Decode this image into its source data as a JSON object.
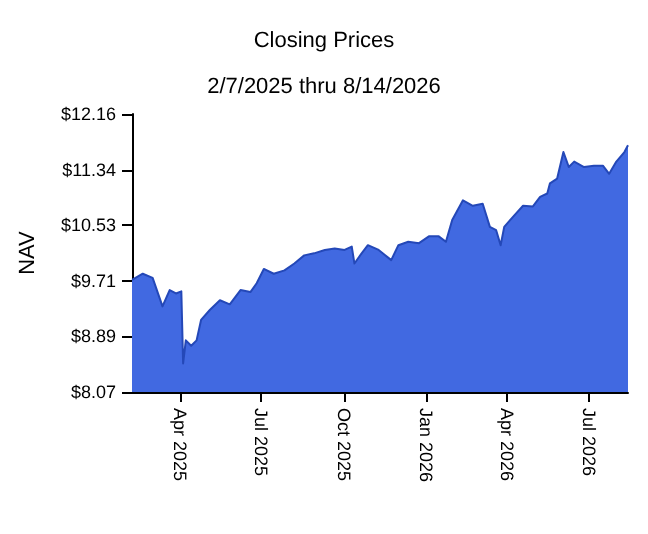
{
  "chart_data": {
    "type": "area",
    "title": "Closing Prices",
    "subtitle": "2/7/2025 thru 8/14/2026",
    "ylabel": "NAV",
    "x": [
      "2025-02-07",
      "2025-02-19",
      "2025-03-02",
      "2025-03-13",
      "2025-03-21",
      "2025-03-28",
      "2025-04-03",
      "2025-04-05",
      "2025-04-08",
      "2025-04-14",
      "2025-04-20",
      "2025-04-25",
      "2025-05-05",
      "2025-05-16",
      "2025-05-27",
      "2025-06-08",
      "2025-06-19",
      "2025-06-26",
      "2025-07-04",
      "2025-07-15",
      "2025-07-27",
      "2025-08-07",
      "2025-08-18",
      "2025-08-29",
      "2025-09-10",
      "2025-09-21",
      "2025-10-02",
      "2025-10-10",
      "2025-10-13",
      "2025-10-21",
      "2025-10-28",
      "2025-11-09",
      "2025-11-23",
      "2025-12-01",
      "2025-12-12",
      "2025-12-24",
      "2026-01-04",
      "2026-01-15",
      "2026-01-23",
      "2026-01-30",
      "2026-02-11",
      "2026-02-22",
      "2026-03-05",
      "2026-03-13",
      "2026-03-20",
      "2026-03-25",
      "2026-03-29",
      "2026-04-08",
      "2026-04-19",
      "2026-04-30",
      "2026-05-08",
      "2026-05-16",
      "2026-05-19",
      "2026-05-27",
      "2026-06-03",
      "2026-06-09",
      "2026-06-15",
      "2026-06-26",
      "2026-07-07",
      "2026-07-17",
      "2026-07-24",
      "2026-08-01",
      "2026-08-10",
      "2026-08-14"
    ],
    "series": [
      {
        "color": "#4169e1",
        "values": [
          9.72,
          9.81,
          9.75,
          9.33,
          9.57,
          9.52,
          9.55,
          8.49,
          8.83,
          8.75,
          8.83,
          9.13,
          9.28,
          9.42,
          9.36,
          9.57,
          9.54,
          9.67,
          9.88,
          9.81,
          9.86,
          9.96,
          10.08,
          10.11,
          10.16,
          10.18,
          10.16,
          10.21,
          9.96,
          10.11,
          10.23,
          10.16,
          10.01,
          10.23,
          10.28,
          10.26,
          10.36,
          10.36,
          10.28,
          10.6,
          10.89,
          10.81,
          10.84,
          10.5,
          10.45,
          10.23,
          10.5,
          10.65,
          10.81,
          10.8,
          10.94,
          10.99,
          11.14,
          11.21,
          11.6,
          11.38,
          11.46,
          11.38,
          11.4,
          11.4,
          11.28,
          11.46,
          11.6,
          11.7
        ]
      }
    ],
    "xlim": [
      "2025-02-07",
      "2026-08-14"
    ],
    "xticks": [
      {
        "value": "2025-04-01",
        "label": "Apr 2025"
      },
      {
        "value": "2025-07-01",
        "label": "Jul 2025"
      },
      {
        "value": "2025-10-01",
        "label": "Oct 2025"
      },
      {
        "value": "2026-01-01",
        "label": "Jan 2026"
      },
      {
        "value": "2026-04-01",
        "label": "Apr 2026"
      },
      {
        "value": "2026-07-01",
        "label": "Jul 2026"
      }
    ],
    "ylim": [
      8.07,
      12.16
    ],
    "yticks": [
      {
        "value": 8.07,
        "label": "$8.07"
      },
      {
        "value": 8.89,
        "label": "$8.89"
      },
      {
        "value": 9.71,
        "label": "$9.71"
      },
      {
        "value": 10.53,
        "label": "$10.53"
      },
      {
        "value": 11.34,
        "label": "$11.34"
      },
      {
        "value": 12.16,
        "label": "$12.16"
      }
    ],
    "grid": false,
    "marker": "none",
    "line_style": "solid"
  }
}
